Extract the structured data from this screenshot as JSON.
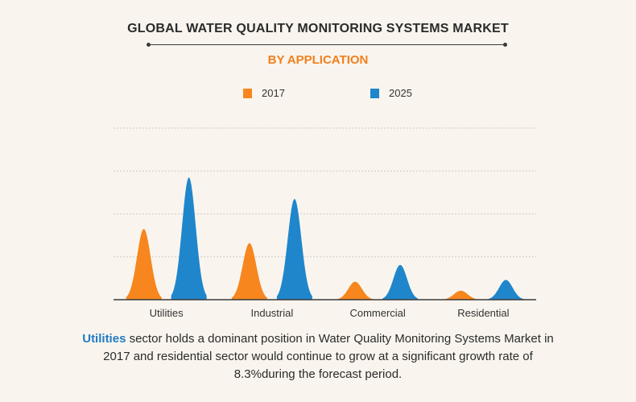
{
  "header": {
    "title": "GLOBAL WATER QUALITY MONITORING SYSTEMS MARKET",
    "subtitle": "BY APPLICATION"
  },
  "colors": {
    "series_2017": "#f7861e",
    "series_2025": "#1f86cc",
    "subtitle": "#f07f1d",
    "highlight": "#1f7cc4",
    "grid": "#d0ccc4",
    "axis": "#3a3a3a"
  },
  "chart_data": {
    "type": "area",
    "categories": [
      "Utilities",
      "Industrial",
      "Commercial",
      "Residential"
    ],
    "series": [
      {
        "name": "2017",
        "values": [
          1.65,
          1.32,
          0.42,
          0.21
        ]
      },
      {
        "name": "2025",
        "values": [
          2.85,
          2.35,
          0.81,
          0.46
        ]
      }
    ],
    "ylim": [
      0,
      4.0
    ],
    "grid": true,
    "legend": "top-center",
    "title": "GLOBAL WATER QUALITY MONITORING SYSTEMS MARKET",
    "subtitle": "BY APPLICATION"
  },
  "caption": {
    "highlight": "Utilities",
    "text": " sector holds a dominant position in Water Quality Monitoring Systems Market in 2017 and residential sector would continue to grow at a significant growth rate of 8.3%during the forecast period."
  }
}
